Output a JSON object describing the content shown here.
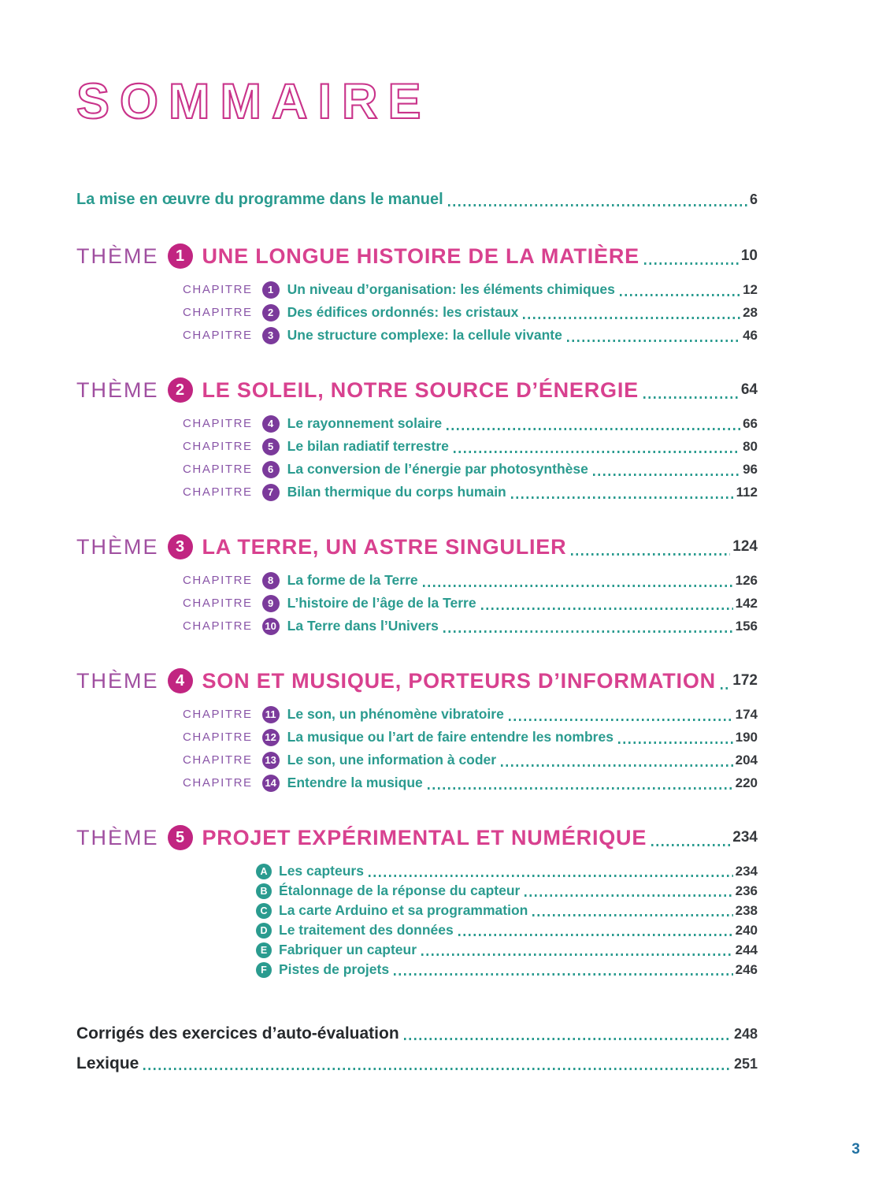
{
  "page": {
    "title": "SOMMAIRE",
    "folio": "3"
  },
  "labels": {
    "theme": "THÈME",
    "chapitre": "CHAPITRE"
  },
  "colors": {
    "title_pink": "#c9338a",
    "theme_title_pink": "#d8418f",
    "theme_badge_magenta": "#c12581",
    "theme_label_purple": "#a04fa0",
    "chapitre_label_purple": "#8a56a8",
    "chapter_badge_purple": "#7b3a9b",
    "teal": "#2a9b8f",
    "page_number_dark": "#36393d",
    "folio_blue": "#2272a3"
  },
  "intro": {
    "label": "La mise en œuvre du programme dans le manuel",
    "page": "6"
  },
  "themes": [
    {
      "number": "1",
      "title": "UNE LONGUE HISTOIRE DE LA MATIÈRE",
      "page": "10",
      "chapters": [
        {
          "number": "1",
          "title": "Un niveau d’organisation: les éléments chimiques",
          "page": "12"
        },
        {
          "number": "2",
          "title": "Des édifices ordonnés: les cristaux",
          "page": "28"
        },
        {
          "number": "3",
          "title": "Une structure complexe: la cellule vivante",
          "page": "46"
        }
      ]
    },
    {
      "number": "2",
      "title": "LE SOLEIL, NOTRE SOURCE D’ÉNERGIE",
      "page": "64",
      "chapters": [
        {
          "number": "4",
          "title": "Le rayonnement solaire",
          "page": "66"
        },
        {
          "number": "5",
          "title": "Le bilan radiatif terrestre",
          "page": "80"
        },
        {
          "number": "6",
          "title": "La conversion de l’énergie par photosynthèse",
          "page": "96"
        },
        {
          "number": "7",
          "title": "Bilan thermique du corps humain",
          "page": "112"
        }
      ]
    },
    {
      "number": "3",
      "title": "LA TERRE, UN ASTRE SINGULIER",
      "page": "124",
      "chapters": [
        {
          "number": "8",
          "title": "La forme de la Terre",
          "page": "126"
        },
        {
          "number": "9",
          "title": "L’histoire de l’âge de la Terre",
          "page": "142"
        },
        {
          "number": "10",
          "title": "La Terre dans l’Univers",
          "page": "156"
        }
      ]
    },
    {
      "number": "4",
      "title": "SON ET MUSIQUE, PORTEURS D’INFORMATION",
      "page": "172",
      "chapters": [
        {
          "number": "11",
          "title": "Le son, un phénomène vibratoire",
          "page": "174"
        },
        {
          "number": "12",
          "title": "La musique ou l’art de faire entendre les nombres",
          "page": "190"
        },
        {
          "number": "13",
          "title": "Le son, une information à coder",
          "page": "204"
        },
        {
          "number": "14",
          "title": "Entendre la musique",
          "page": "220"
        }
      ]
    },
    {
      "number": "5",
      "title": "PROJET EXPÉRIMENTAL ET NUMÉRIQUE",
      "page": "234",
      "sections": [
        {
          "letter": "A",
          "title": "Les capteurs",
          "page": "234"
        },
        {
          "letter": "B",
          "title": "Étalonnage de la réponse du capteur",
          "page": "236"
        },
        {
          "letter": "C",
          "title": "La carte Arduino et sa programmation",
          "page": "238"
        },
        {
          "letter": "D",
          "title": "Le traitement des données",
          "page": "240"
        },
        {
          "letter": "E",
          "title": "Fabriquer un capteur",
          "page": "244"
        },
        {
          "letter": "F",
          "title": "Pistes de projets",
          "page": "246"
        }
      ]
    }
  ],
  "footer": [
    {
      "title": "Corrigés des exercices d’auto-évaluation",
      "page": "248"
    },
    {
      "title": "Lexique",
      "page": "251"
    }
  ]
}
